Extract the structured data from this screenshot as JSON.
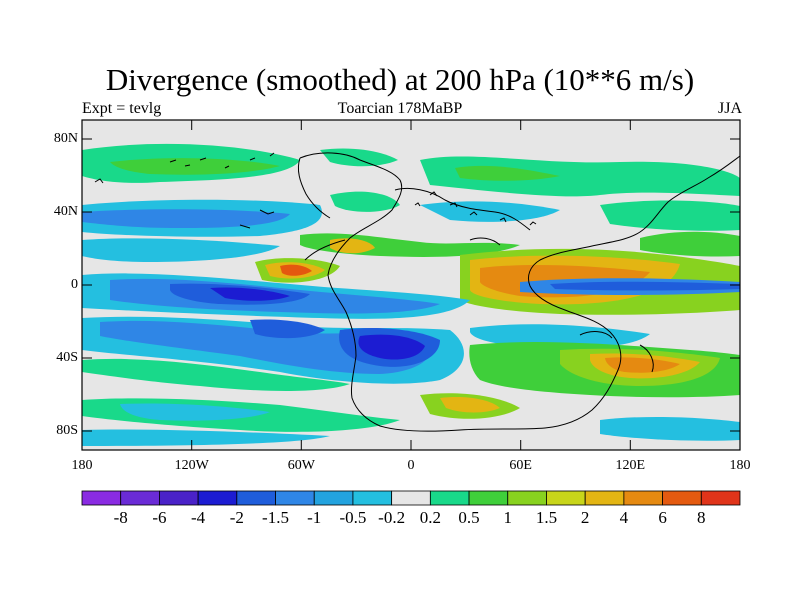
{
  "title": "Divergence (smoothed) at 200 hPa (10**6 m/s)",
  "subtitle": {
    "left": "Expt = tevlg",
    "center": "Toarcian 178MaBP",
    "right": "JJA"
  },
  "axes": {
    "lat_ticks": [
      "80N",
      "40N",
      "0",
      "40S",
      "80S"
    ],
    "lon_ticks": [
      "180",
      "120W",
      "60W",
      "0",
      "60E",
      "120E",
      "180"
    ]
  },
  "colorbar": {
    "labels": [
      "-8",
      "-6",
      "-4",
      "-2",
      "-1.5",
      "-1",
      "-0.5",
      "-0.2",
      "0.2",
      "0.5",
      "1",
      "1.5",
      "2",
      "4",
      "6",
      "8"
    ],
    "colors": [
      "#8a2be2",
      "#6a2bd6",
      "#4a22c8",
      "#1c1cd2",
      "#1f5ddb",
      "#2f86e6",
      "#23a3df",
      "#24bfe0",
      "#e6e6e6",
      "#19d98a",
      "#3fcf3a",
      "#88d21f",
      "#c8d51a",
      "#e3b513",
      "#e58a11",
      "#e45a10",
      "#e0341a"
    ]
  },
  "chart_data": {
    "type": "heatmap",
    "title": "Divergence (smoothed) at 200 hPa (10**6 m/s)",
    "variable": "Divergence (smoothed) at 200 hPa",
    "units": "10**6 m/s",
    "experiment": "tevlg",
    "period": "Toarcian 178MaBP",
    "season": "JJA",
    "x_range": [
      -180,
      180
    ],
    "y_range": [
      -90,
      90
    ],
    "contour_levels": [
      -8,
      -6,
      -4,
      -2,
      -1.5,
      -1,
      -0.5,
      -0.2,
      0.2,
      0.5,
      1,
      1.5,
      2,
      4,
      6,
      8
    ]
  }
}
